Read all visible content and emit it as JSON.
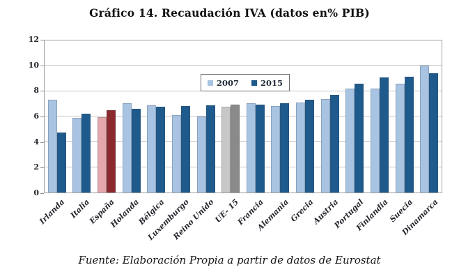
{
  "title": "Gráfico 14. Recaudación IVA (datos en% PIB)",
  "source": "Fuente: Elaboración Propia a partir de datos de Eurostat",
  "legend": {
    "items": [
      {
        "label": "2007",
        "color": "#a8c4e2"
      },
      {
        "label": "2015",
        "color": "#1f5a8c"
      }
    ]
  },
  "chart_data": {
    "type": "bar",
    "title": "Gráfico 14. Recaudación IVA (datos en% PIB)",
    "xlabel": "",
    "ylabel": "",
    "ylim": [
      0,
      12
    ],
    "yticks": [
      0,
      2,
      4,
      6,
      8,
      10,
      12
    ],
    "grid": true,
    "legend_position": "inside-top-center",
    "categories": [
      "Irlanda",
      "Italia",
      "España",
      "Holanda",
      "Bélgica",
      "Luxemburgo",
      "Reino Unido",
      "UE- 15",
      "Francia",
      "Alemania",
      "Grecia",
      "Austria",
      "Portugal",
      "Finlandia",
      "Suecia",
      "Dinamarca"
    ],
    "series": [
      {
        "name": "2007",
        "values": [
          7.3,
          5.9,
          5.95,
          7.05,
          6.9,
          6.1,
          6.0,
          6.75,
          7.05,
          6.8,
          7.1,
          7.4,
          8.2,
          8.2,
          8.6,
          10.0
        ]
      },
      {
        "name": "2015",
        "values": [
          4.75,
          6.2,
          6.5,
          6.6,
          6.75,
          6.8,
          6.9,
          6.95,
          6.95,
          7.05,
          7.3,
          7.7,
          8.6,
          9.1,
          9.15,
          9.4
        ]
      }
    ],
    "colors": {
      "series_2007": "#a8c4e2",
      "series_2015": "#1f5a8c",
      "espana_2007": "#e4a7ab",
      "espana_2015": "#8b2a2e",
      "ue15_2007": "#c7c7c7",
      "ue15_2015": "#8a8a8a",
      "gridline": "#c6c6c6",
      "axis_text": "#26262e"
    },
    "highlighted_categories": {
      "espana": "España",
      "ue15": "UE- 15"
    }
  }
}
